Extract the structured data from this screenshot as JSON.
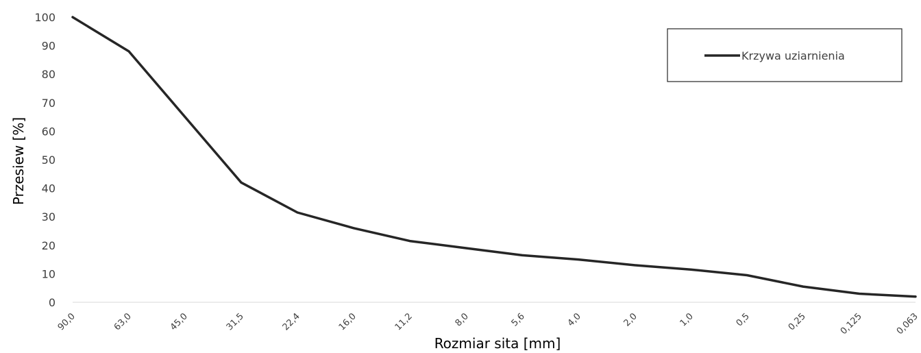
{
  "chart_data": {
    "type": "line",
    "title": "",
    "xlabel": "Rozmiar sita [mm]",
    "ylabel": "Przesiew [%]",
    "ylim": [
      0,
      100
    ],
    "yticks": [
      "0",
      "10",
      "20",
      "30",
      "40",
      "50",
      "60",
      "70",
      "80",
      "90",
      "100"
    ],
    "categories": [
      "90,0",
      "63,0",
      "45,0",
      "31,5",
      "22,4",
      "16,0",
      "11,2",
      "8,0",
      "5,6",
      "4,0",
      "2,0",
      "1,0",
      "0,5",
      "0,25",
      "0,125",
      "0,063"
    ],
    "series": [
      {
        "name": "Krzywa uziarnienia",
        "color": "#262626",
        "values": [
          100,
          88,
          65,
          42,
          31.5,
          26,
          21.5,
          19,
          16.5,
          15,
          13,
          11.5,
          9.5,
          5.5,
          3,
          2
        ]
      }
    ],
    "grid": false,
    "legend": "top-right"
  }
}
